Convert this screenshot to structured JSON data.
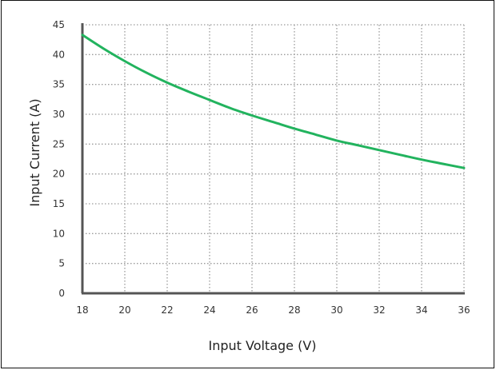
{
  "chart_data": {
    "type": "line",
    "title": "",
    "xlabel": "Input Voltage (V)",
    "ylabel": "Input Current (A)",
    "xlim": [
      18,
      36
    ],
    "ylim": [
      0,
      45
    ],
    "x_ticks": [
      "18",
      "20",
      "22",
      "24",
      "26",
      "28",
      "30",
      "32",
      "34",
      "36"
    ],
    "y_ticks": [
      "0",
      "5",
      "10",
      "15",
      "20",
      "25",
      "30",
      "35",
      "40",
      "45"
    ],
    "grid": true,
    "legend": "none",
    "series": [
      {
        "color": "#22b35e",
        "x": [
          18,
          19,
          20,
          21,
          22,
          23,
          24,
          25,
          26,
          27,
          28,
          29,
          30,
          31,
          32,
          33,
          34,
          35,
          36
        ],
        "y": [
          43.3,
          41.0,
          38.9,
          37.0,
          35.3,
          33.8,
          32.4,
          31.0,
          29.8,
          28.7,
          27.6,
          26.6,
          25.6,
          24.8,
          24.0,
          23.2,
          22.4,
          21.7,
          21.0
        ]
      }
    ]
  }
}
